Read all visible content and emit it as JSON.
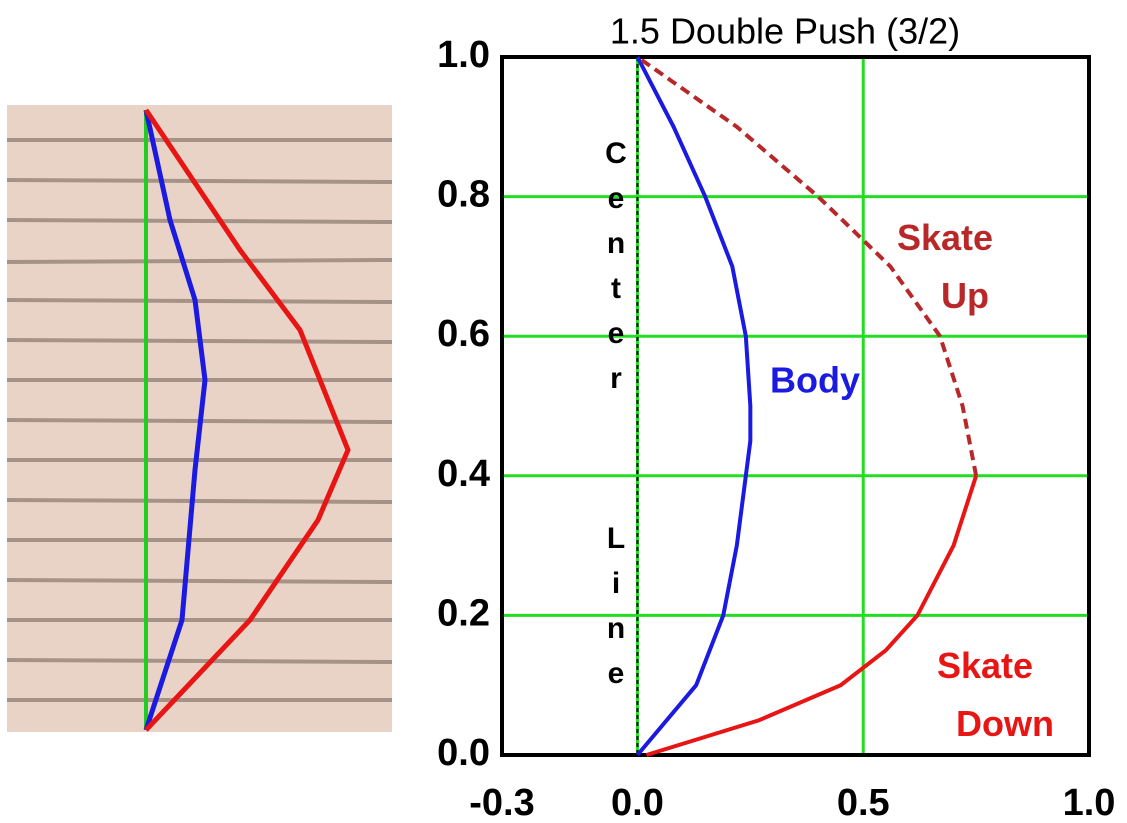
{
  "chart_data": {
    "type": "line",
    "title": "1.5 Double Push (3/2)",
    "annotation": "Center Line",
    "xlim": [
      -0.3,
      1.0
    ],
    "ylim": [
      0,
      1
    ],
    "xticks": [
      -0.3,
      {
        "value": 0,
        "label": "0.0"
      },
      0.5,
      {
        "value": 1,
        "label": "1.0"
      }
    ],
    "yticks": [
      {
        "value": 0,
        "label": "0.0"
      },
      0.2,
      0.4,
      0.6,
      0.8,
      {
        "value": 1,
        "label": "1.0"
      }
    ],
    "grid": true,
    "grid_color": "#22dd22",
    "series": [
      {
        "name": "Body",
        "color": "#1a1ae0",
        "line_style": "solid",
        "x": [
          0,
          0.13,
          0.19,
          0.22,
          0.24,
          0.25,
          0.25,
          0.24,
          0.21,
          0.15,
          0.08,
          0
        ],
        "y": [
          0,
          0.1,
          0.2,
          0.3,
          0.4,
          0.45,
          0.5,
          0.6,
          0.7,
          0.8,
          0.9,
          1.0
        ]
      },
      {
        "name": "Skate Down",
        "color": "#e81515",
        "line_style": "solid",
        "x": [
          0.02,
          0.27,
          0.45,
          0.55,
          0.62,
          0.7,
          0.75
        ],
        "y": [
          0,
          0.05,
          0.1,
          0.15,
          0.2,
          0.3,
          0.4
        ]
      },
      {
        "name": "Skate Up",
        "color": "#b82828",
        "line_style": "dashed",
        "x": [
          0.75,
          0.72,
          0.67,
          0.56,
          0.4,
          0.22,
          0
        ],
        "y": [
          0.4,
          0.5,
          0.6,
          0.7,
          0.8,
          0.9,
          1.0
        ]
      }
    ]
  }
}
